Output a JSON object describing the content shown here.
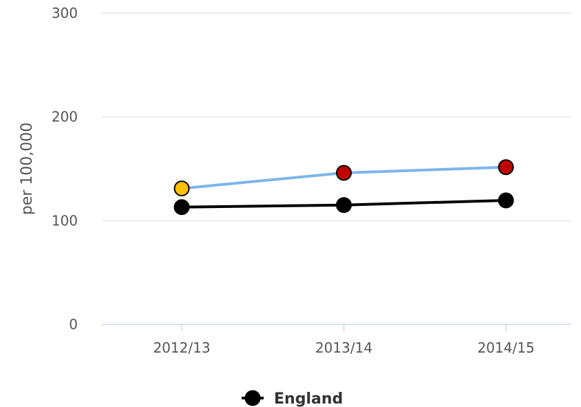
{
  "chart_data": {
    "type": "line",
    "title": "",
    "xlabel": "",
    "ylabel": "per 100,000",
    "categories": [
      "2012/13",
      "2013/14",
      "2014/15"
    ],
    "ylim": [
      0,
      300
    ],
    "yticks": [
      0,
      100,
      200,
      300
    ],
    "grid": true,
    "legend": "bottom-center",
    "series": [
      {
        "key": "area",
        "line_color": "#7cb5ec",
        "values": [
          131,
          146,
          151.5
        ],
        "point_colors": [
          "#ffc000",
          "#c00000",
          "#c00000"
        ],
        "show_in_legend": false
      },
      {
        "name": "England",
        "line_color": "#000000",
        "values": [
          113,
          115,
          119.5
        ],
        "point_colors": [
          "#000000",
          "#000000",
          "#000000"
        ],
        "show_in_legend": true
      }
    ]
  }
}
